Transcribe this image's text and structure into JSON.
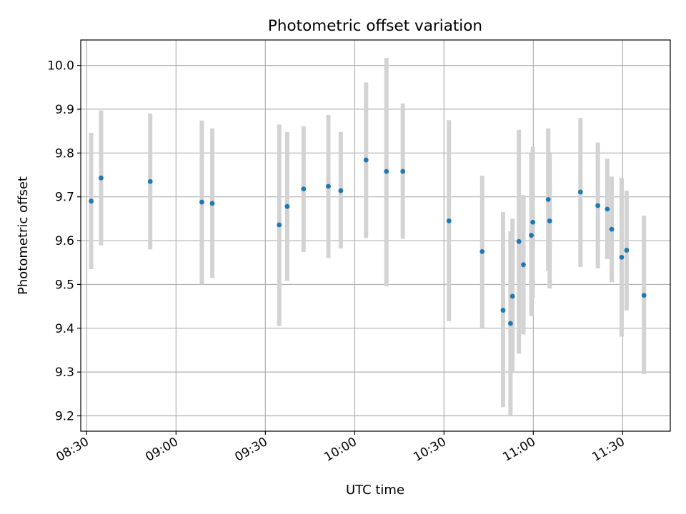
{
  "chart_data": {
    "type": "scatter",
    "title": "Photometric offset variation",
    "xlabel": "UTC time",
    "ylabel": "Photometric offset",
    "x_type": "time",
    "xlim": [
      "08:28",
      "11:46"
    ],
    "ylim": [
      9.165,
      10.058
    ],
    "x_ticks": [
      "08:30",
      "09:00",
      "09:30",
      "10:00",
      "10:30",
      "11:00",
      "11:30"
    ],
    "y_ticks": [
      9.2,
      9.3,
      9.4,
      9.5,
      9.6,
      9.7,
      9.8,
      9.9,
      10.0
    ],
    "y_tick_labels": [
      "9.2",
      "9.3",
      "9.4",
      "9.5",
      "9.6",
      "9.7",
      "9.8",
      "9.9",
      "10.0"
    ],
    "grid": true,
    "errorbar_color": "#d3d3d3",
    "marker_color": "#1f77b4",
    "points": [
      {
        "x": "08:31:30",
        "y": 9.69,
        "y_low": 9.535,
        "y_high": 9.846
      },
      {
        "x": "08:34:50",
        "y": 9.743,
        "y_low": 9.589,
        "y_high": 9.897
      },
      {
        "x": "08:51:20",
        "y": 9.735,
        "y_low": 9.58,
        "y_high": 9.89
      },
      {
        "x": "09:08:40",
        "y": 9.688,
        "y_low": 9.5,
        "y_high": 9.874
      },
      {
        "x": "09:12:10",
        "y": 9.685,
        "y_low": 9.515,
        "y_high": 9.856
      },
      {
        "x": "09:34:40",
        "y": 9.636,
        "y_low": 9.405,
        "y_high": 9.865
      },
      {
        "x": "09:37:20",
        "y": 9.678,
        "y_low": 9.508,
        "y_high": 9.848
      },
      {
        "x": "09:42:50",
        "y": 9.718,
        "y_low": 9.574,
        "y_high": 9.861
      },
      {
        "x": "09:51:10",
        "y": 9.724,
        "y_low": 9.56,
        "y_high": 9.887
      },
      {
        "x": "09:55:20",
        "y": 9.714,
        "y_low": 9.582,
        "y_high": 9.848
      },
      {
        "x": "10:03:50",
        "y": 9.784,
        "y_low": 9.606,
        "y_high": 9.961
      },
      {
        "x": "10:10:40",
        "y": 9.758,
        "y_low": 9.496,
        "y_high": 10.017
      },
      {
        "x": "10:16:10",
        "y": 9.758,
        "y_low": 9.604,
        "y_high": 9.913
      },
      {
        "x": "10:31:40",
        "y": 9.645,
        "y_low": 9.416,
        "y_high": 9.875
      },
      {
        "x": "10:42:50",
        "y": 9.575,
        "y_low": 9.4,
        "y_high": 9.748
      },
      {
        "x": "10:49:50",
        "y": 9.441,
        "y_low": 9.22,
        "y_high": 9.665
      },
      {
        "x": "10:52:20",
        "y": 9.411,
        "y_low": 9.2,
        "y_high": 9.621
      },
      {
        "x": "10:53:00",
        "y": 9.473,
        "y_low": 9.298,
        "y_high": 9.65
      },
      {
        "x": "10:55:10",
        "y": 9.598,
        "y_low": 9.342,
        "y_high": 9.853
      },
      {
        "x": "10:56:40",
        "y": 9.545,
        "y_low": 9.386,
        "y_high": 9.704
      },
      {
        "x": "10:59:20",
        "y": 9.612,
        "y_low": 9.428,
        "y_high": 9.8
      },
      {
        "x": "10:59:50",
        "y": 9.642,
        "y_low": 9.47,
        "y_high": 9.814
      },
      {
        "x": "11:05:00",
        "y": 9.694,
        "y_low": 9.531,
        "y_high": 9.856
      },
      {
        "x": "11:05:30",
        "y": 9.645,
        "y_low": 9.491,
        "y_high": 9.8
      },
      {
        "x": "11:15:50",
        "y": 9.711,
        "y_low": 9.54,
        "y_high": 9.88
      },
      {
        "x": "11:21:40",
        "y": 9.68,
        "y_low": 9.537,
        "y_high": 9.824
      },
      {
        "x": "11:24:50",
        "y": 9.672,
        "y_low": 9.558,
        "y_high": 9.787
      },
      {
        "x": "11:26:20",
        "y": 9.626,
        "y_low": 9.505,
        "y_high": 9.746
      },
      {
        "x": "11:29:40",
        "y": 9.562,
        "y_low": 9.381,
        "y_high": 9.743
      },
      {
        "x": "11:31:20",
        "y": 9.578,
        "y_low": 9.441,
        "y_high": 9.714
      },
      {
        "x": "11:37:10",
        "y": 9.475,
        "y_low": 9.295,
        "y_high": 9.657
      }
    ]
  }
}
